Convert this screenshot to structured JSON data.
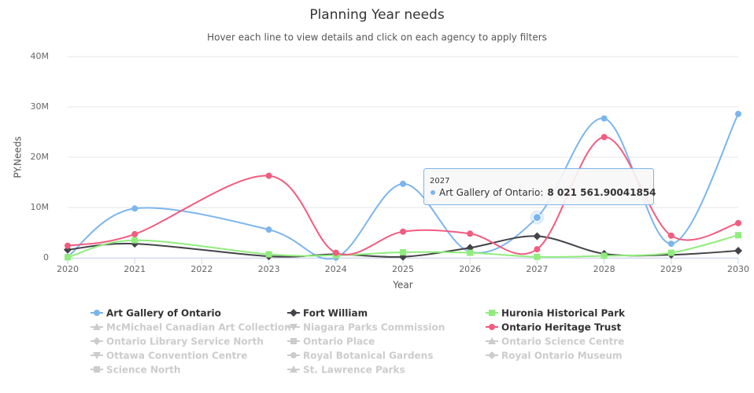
{
  "chart_data": {
    "type": "line",
    "title": "Planning Year needs",
    "subtitle": "Hover each line to view details and click on each agency to apply filters",
    "x_label": "Year",
    "y_label": "PY.Needs",
    "x": [
      2020,
      2021,
      2023,
      2024,
      2025,
      2026,
      2027,
      2028,
      2029,
      2030
    ],
    "xlim": [
      2020,
      2030
    ],
    "xticks": [
      2020,
      2021,
      2022,
      2023,
      2024,
      2025,
      2026,
      2027,
      2028,
      2029,
      2030
    ],
    "ylim": [
      0,
      40000000
    ],
    "yticks": [
      {
        "value": 0,
        "label": "0"
      },
      {
        "value": 10000000,
        "label": "10M"
      },
      {
        "value": 20000000,
        "label": "20M"
      },
      {
        "value": 30000000,
        "label": "30M"
      },
      {
        "value": 40000000,
        "label": "40M"
      }
    ],
    "grid": true,
    "series": [
      {
        "name": "Art Gallery of Ontario",
        "color": "#7cb5ec",
        "symbol": "circle",
        "visible": true,
        "values": [
          200000,
          9800000,
          5600000,
          50000,
          14700000,
          1200000,
          8021561.90041854,
          27700000,
          2800000,
          28600000
        ]
      },
      {
        "name": "Fort William",
        "color": "#434348",
        "symbol": "diamond",
        "visible": true,
        "values": [
          1600000,
          2800000,
          300000,
          700000,
          200000,
          2000000,
          4300000,
          800000,
          600000,
          1400000
        ]
      },
      {
        "name": "Huronia Historical Park",
        "color": "#90ed7d",
        "symbol": "square",
        "visible": true,
        "values": [
          100000,
          3500000,
          700000,
          500000,
          1100000,
          1000000,
          200000,
          400000,
          1000000,
          4500000
        ]
      },
      {
        "name": "McMichael Canadian Art Collection",
        "color": "#cccccc",
        "symbol": "triangle",
        "visible": false
      },
      {
        "name": "Niagara Parks Commission",
        "color": "#cccccc",
        "symbol": "triangle-down",
        "visible": false
      },
      {
        "name": "Ontario Heritage Trust",
        "color": "#f15c80",
        "symbol": "circle",
        "visible": true,
        "values": [
          2400000,
          4700000,
          16300000,
          1000000,
          5200000,
          4800000,
          1700000,
          24000000,
          4400000,
          6900000
        ]
      },
      {
        "name": "Ontario Library Service North",
        "color": "#cccccc",
        "symbol": "diamond",
        "visible": false
      },
      {
        "name": "Ontario Place",
        "color": "#cccccc",
        "symbol": "square",
        "visible": false
      },
      {
        "name": "Ontario Science Centre",
        "color": "#cccccc",
        "symbol": "triangle",
        "visible": false
      },
      {
        "name": "Ottawa Convention Centre",
        "color": "#cccccc",
        "symbol": "triangle-down",
        "visible": false
      },
      {
        "name": "Royal Botanical Gardens",
        "color": "#cccccc",
        "symbol": "circle",
        "visible": false
      },
      {
        "name": "Royal Ontario Museum",
        "color": "#cccccc",
        "symbol": "diamond",
        "visible": false
      },
      {
        "name": "Science North",
        "color": "#cccccc",
        "symbol": "square",
        "visible": false
      },
      {
        "name": "St. Lawrence Parks",
        "color": "#cccccc",
        "symbol": "triangle",
        "visible": false
      }
    ],
    "tooltip": {
      "title": "2027",
      "label": "Art Gallery of Ontario:",
      "value": "8 021 561.90041854"
    }
  }
}
